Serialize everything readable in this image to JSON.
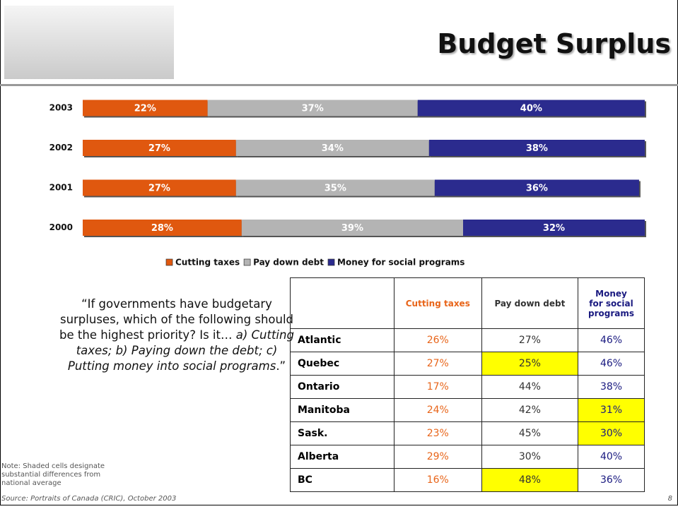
{
  "title": "Budget Surplus",
  "chart_data": {
    "type": "stacked-bar-horizontal",
    "categories": [
      "2003",
      "2002",
      "2001",
      "2000"
    ],
    "series": [
      {
        "name": "Cutting taxes",
        "color": "#e0580f",
        "values": [
          22,
          27,
          27,
          28
        ],
        "value_labels": [
          "22%",
          "27%",
          "27%",
          "28%"
        ]
      },
      {
        "name": "Pay down debt",
        "color": "#b4b4b4",
        "values": [
          37,
          34,
          35,
          39
        ],
        "value_labels": [
          "37%",
          "34%",
          "35%",
          "39%"
        ]
      },
      {
        "name": "Money for social programs",
        "color": "#2b2b8e",
        "values": [
          40,
          38,
          36,
          32
        ],
        "value_labels": [
          "40%",
          "38%",
          "36%",
          "32%"
        ]
      }
    ],
    "legend": "bottom"
  },
  "question": {
    "intro": "“If governments have budgetary surpluses, which of the following should be the highest priority?  Is it…",
    "options": "a) Cutting taxes;  b) Paying down the debt;  c) Putting money into social programs",
    "close": ".”"
  },
  "table": {
    "header": [
      "Cutting taxes",
      "Pay down debt",
      "Money for social programs"
    ],
    "rows": [
      [
        "Atlantic",
        "26%",
        "27%",
        "46%"
      ],
      [
        "Quebec",
        "27%",
        "25%",
        "46%"
      ],
      [
        "Ontario",
        "17%",
        "44%",
        "38%"
      ],
      [
        "Manitoba",
        "24%",
        "42%",
        "31%"
      ],
      [
        "Sask.",
        "23%",
        "45%",
        "30%"
      ],
      [
        "Alberta",
        "29%",
        "30%",
        "40%"
      ],
      [
        "BC",
        "16%",
        "48%",
        "36%"
      ]
    ]
  },
  "note": "Note:  Shaded cells designate substantial differences from national average",
  "source": "Source: Portraits of Canada (CRIC), October 2003",
  "page_number": "8"
}
